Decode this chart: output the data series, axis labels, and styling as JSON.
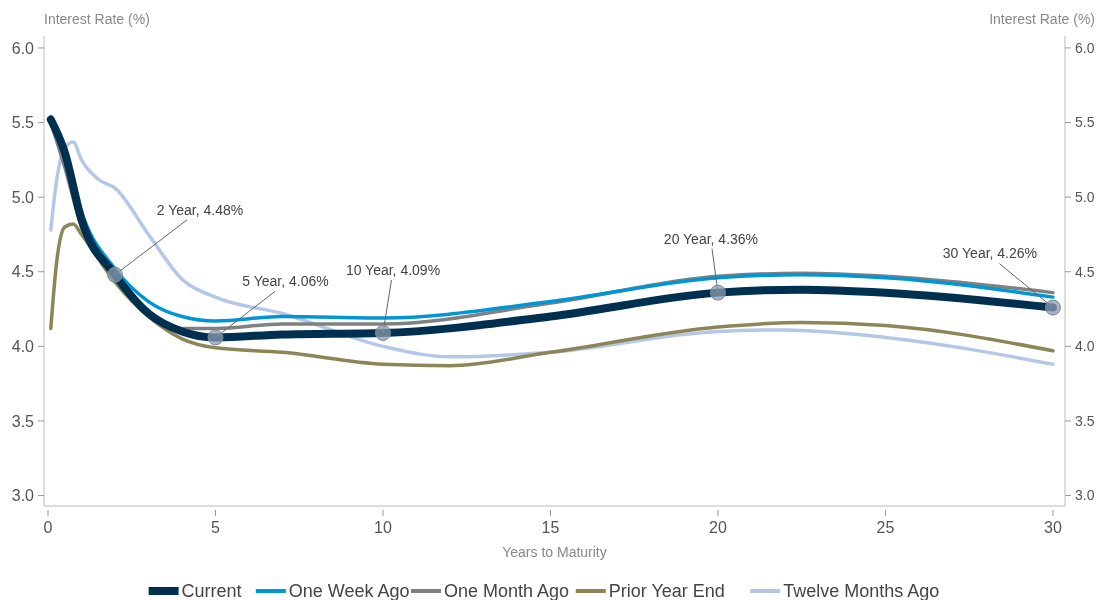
{
  "chart_data": {
    "type": "line",
    "ylabel": "Interest Rate (%)",
    "y2label": "Interest Rate (%)",
    "xlabel": "Years to Maturity",
    "xlim": [
      -0.12,
      30.36
    ],
    "xticks": [
      0,
      5,
      10,
      15,
      20,
      25,
      30
    ],
    "ylim": [
      2.93,
      6.08
    ],
    "yticks": [
      {
        "value": 3,
        "label": "3.0"
      },
      {
        "value": 3.5,
        "label": "3.5"
      },
      {
        "value": 4,
        "label": "4.0"
      },
      {
        "value": 4.5,
        "label": "4.5"
      },
      {
        "value": 5,
        "label": "5.0"
      },
      {
        "value": 5.5,
        "label": "5.5"
      },
      {
        "value": 6,
        "label": "6.0"
      }
    ],
    "y2lim": [
      2.93,
      6.08
    ],
    "y2ticks": [
      {
        "value": 3,
        "label": "3.0"
      },
      {
        "value": 3.5,
        "label": "3.5"
      },
      {
        "value": 4,
        "label": "4.0"
      },
      {
        "value": 4.5,
        "label": "4.5"
      },
      {
        "value": 5,
        "label": "5.0"
      },
      {
        "value": 5.5,
        "label": "5.5"
      },
      {
        "value": 6,
        "label": "6.0"
      }
    ],
    "grid": false,
    "legend": "bottom",
    "marker": "none",
    "line_style": "solid",
    "series": [
      {
        "name": "Current",
        "color": "#00304f",
        "x": [
          0.083,
          0.5,
          1,
          2,
          3,
          4,
          5,
          7,
          10,
          15,
          20,
          22.5,
          25,
          30
        ],
        "values": [
          5.52,
          5.3,
          4.85,
          4.48,
          4.22,
          4.1,
          4.06,
          4.08,
          4.09,
          4.2,
          4.36,
          4.38,
          4.36,
          4.26
        ]
      },
      {
        "name": "One Week Ago",
        "color": "#0096d6",
        "x": [
          0.083,
          0.5,
          1,
          2,
          3,
          4,
          5,
          7,
          10,
          15,
          20,
          22.5,
          25,
          30
        ],
        "values": [
          5.54,
          5.3,
          4.9,
          4.52,
          4.3,
          4.2,
          4.17,
          4.2,
          4.19,
          4.3,
          4.46,
          4.48,
          4.46,
          4.33
        ]
      },
      {
        "name": "One Month Ago",
        "color": "#808080",
        "x": [
          0.083,
          0.5,
          1,
          2,
          3,
          4,
          5,
          7,
          10,
          15,
          20,
          22.5,
          25,
          30
        ],
        "values": [
          5.5,
          5.2,
          4.8,
          4.47,
          4.23,
          4.12,
          4.12,
          4.15,
          4.15,
          4.29,
          4.47,
          4.49,
          4.47,
          4.36
        ]
      },
      {
        "name": "Prior Year End",
        "color": "#8c8656",
        "x": [
          0.083,
          0.25,
          0.5,
          0.75,
          1,
          2,
          3,
          4,
          5,
          7,
          10,
          12,
          15,
          20,
          22.5,
          25,
          30
        ],
        "values": [
          4.12,
          4.55,
          4.8,
          4.82,
          4.75,
          4.43,
          4.2,
          4.05,
          3.99,
          3.96,
          3.88,
          3.87,
          3.96,
          4.13,
          4.16,
          4.14,
          3.97
        ]
      },
      {
        "name": "Twelve Months Ago",
        "color": "#b4c7e7",
        "x": [
          0.083,
          0.25,
          0.5,
          0.75,
          1,
          1.5,
          2,
          3,
          4,
          5,
          7,
          10,
          12,
          15,
          20,
          22,
          25,
          30
        ],
        "values": [
          4.78,
          5.1,
          5.33,
          5.37,
          5.25,
          5.12,
          5.06,
          4.75,
          4.45,
          4.33,
          4.22,
          4.0,
          3.93,
          3.96,
          4.1,
          4.11,
          4.06,
          3.88
        ]
      }
    ],
    "annotations": [
      {
        "text": "2 Year, 4.48%",
        "x": 2,
        "y": 4.48
      },
      {
        "text": "5 Year, 4.06%",
        "x": 5,
        "y": 4.06
      },
      {
        "text": "10 Year, 4.09%",
        "x": 10,
        "y": 4.09
      },
      {
        "text": "20 Year, 4.36%",
        "x": 20,
        "y": 4.36
      },
      {
        "text": "30 Year, 4.26%",
        "x": 30,
        "y": 4.26
      }
    ]
  }
}
